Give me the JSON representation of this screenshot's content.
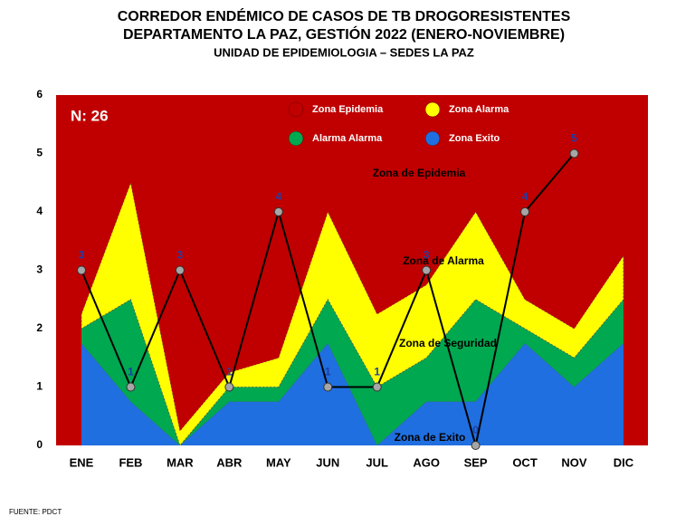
{
  "chart_data": {
    "type": "stacked_area_line",
    "title": [
      "CORREDOR ENDÉMICO DE CASOS DE TB DROGORESISTENTES",
      "DEPARTAMENTO  LA PAZ, GESTIÓN 2022 (ENERO-NOVIEMBRE)",
      "UNIDAD DE EPIDEMIOLOGIA – SEDES LA PAZ"
    ],
    "note": "N: 26",
    "source": "FUENTE:   PDCT",
    "categories": [
      "ENE",
      "FEB",
      "MAR",
      "ABR",
      "MAY",
      "JUN",
      "JUL",
      "AGO",
      "SEP",
      "OCT",
      "NOV",
      "DIC"
    ],
    "series": [
      {
        "name": "Zona Exito",
        "color": "#1f6fe0",
        "values": [
          1.75,
          0.75,
          0,
          0.75,
          0.75,
          1.75,
          0,
          0.75,
          0.75,
          1.75,
          1.0,
          1.75
        ]
      },
      {
        "name": "Alarma  Alarma",
        "color": "#00a850",
        "values": [
          0.25,
          1.75,
          0,
          0.25,
          0.25,
          0.75,
          1.0,
          0.75,
          1.75,
          0.25,
          0.5,
          0.75
        ]
      },
      {
        "name": "Zona  Alarma",
        "color": "#ffff00",
        "values": [
          0.25,
          2.0,
          0.25,
          0.25,
          0.5,
          1.5,
          1.25,
          1.25,
          1.5,
          0.5,
          0.5,
          0.75
        ]
      },
      {
        "name": "Zona Epidemia",
        "color": "#c00000",
        "values": [
          3.75,
          1.5,
          5.75,
          4.75,
          4.5,
          2.0,
          3.75,
          3.25,
          2.0,
          3.5,
          4.0,
          2.75
        ]
      }
    ],
    "cases": {
      "color": "#000000",
      "marker_color": "#a6a6a6",
      "label_color": "#1f3fa8",
      "values": [
        3,
        1,
        3,
        1,
        4,
        1,
        1,
        3,
        0,
        4,
        5,
        null
      ]
    },
    "annotations": [
      "Zona de Epidemia",
      "Zona de Alarma",
      "Zona de Seguridad",
      "Zona de Exito"
    ],
    "ylim": [
      0,
      6
    ],
    "yticks": [
      0,
      1,
      2,
      3,
      4,
      5,
      6
    ],
    "grid": false
  }
}
